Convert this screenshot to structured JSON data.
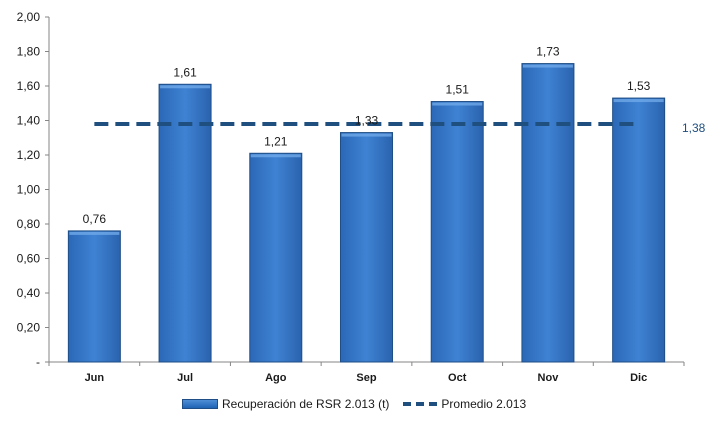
{
  "chart_data": {
    "type": "bar",
    "categories": [
      "Jun",
      "Jul",
      "Ago",
      "Sep",
      "Oct",
      "Nov",
      "Dic"
    ],
    "series": [
      {
        "name": "Recuperación de RSR 2.013 (t)",
        "values": [
          0.76,
          1.61,
          1.21,
          1.33,
          1.51,
          1.73,
          1.53
        ]
      }
    ],
    "value_labels": [
      "0,76",
      "1,61",
      "1,21",
      "1,33",
      "1,51",
      "1,73",
      "1,53"
    ],
    "average": {
      "name": "Promedio 2.013",
      "value": 1.38,
      "label": "1,38"
    },
    "yticks": [
      "-",
      "0,20",
      "0,40",
      "0,60",
      "0,80",
      "1,00",
      "1,20",
      "1,40",
      "1,60",
      "1,80",
      "2,00"
    ],
    "ylim": [
      0,
      2.0
    ],
    "grid": false,
    "legend_position": "bottom",
    "colors": {
      "bar": "#2e6fc0",
      "bar_dark": "#1f4e86",
      "average_line": "#1f4f7f",
      "average_label": "#1f4f7f"
    }
  }
}
